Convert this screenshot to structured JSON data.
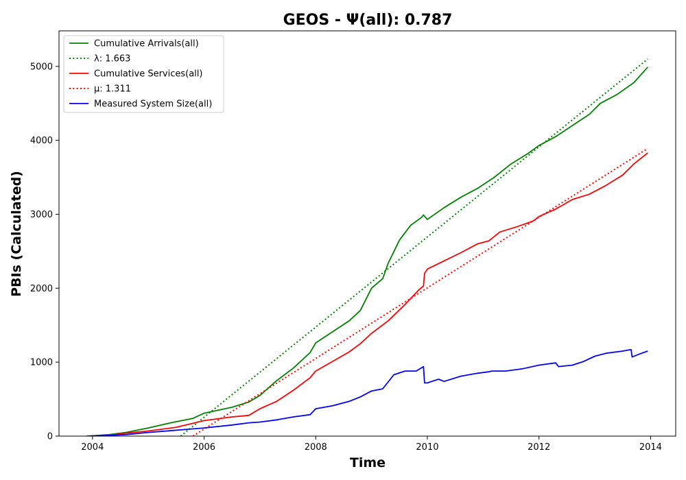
{
  "chart_data": {
    "type": "line",
    "title": "GEOS -  Ψ(all): 0.787",
    "xlabel": "Time",
    "ylabel": "PBIs (Calculated)",
    "xlim": [
      2003.4,
      2014.45
    ],
    "ylim": [
      0,
      5480
    ],
    "x_ticks": [
      2004,
      2006,
      2008,
      2010,
      2012,
      2014
    ],
    "x_tick_labels": [
      "2004",
      "2006",
      "2008",
      "2010",
      "2012",
      "2014"
    ],
    "y_ticks": [
      0,
      1000,
      2000,
      3000,
      4000,
      5000
    ],
    "y_tick_labels": [
      "0",
      "1000",
      "2000",
      "3000",
      "4000",
      "5000"
    ],
    "grid": false,
    "legend_position": "top-left",
    "series": [
      {
        "name": "Cumulative Arrivals(all)",
        "color": "#008000",
        "style": "solid",
        "x": [
          2003.9,
          2004.3,
          2004.6,
          2005.0,
          2005.4,
          2005.8,
          2006.0,
          2006.5,
          2006.8,
          2007.0,
          2007.3,
          2007.6,
          2007.9,
          2008.0,
          2008.3,
          2008.6,
          2008.8,
          2009.0,
          2009.2,
          2009.3,
          2009.5,
          2009.7,
          2009.9,
          2009.93,
          2010.0,
          2010.3,
          2010.6,
          2010.9,
          2011.2,
          2011.5,
          2011.8,
          2012.0,
          2012.3,
          2012.6,
          2012.9,
          2013.1,
          2013.4,
          2013.7,
          2013.95
        ],
        "y": [
          0,
          20,
          50,
          110,
          180,
          240,
          310,
          390,
          460,
          550,
          750,
          920,
          1130,
          1260,
          1410,
          1560,
          1700,
          2000,
          2130,
          2340,
          2650,
          2850,
          2960,
          2990,
          2930,
          3090,
          3230,
          3350,
          3500,
          3680,
          3820,
          3930,
          4050,
          4200,
          4350,
          4500,
          4620,
          4780,
          4990
        ]
      },
      {
        "name": "λ: 1.663",
        "color": "#008000",
        "style": "dotted",
        "x": [
          2005.58,
          2013.95
        ],
        "y": [
          0,
          5100
        ]
      },
      {
        "name": "Cumulative Services(all)",
        "color": "#ff0000",
        "style": "solid",
        "x": [
          2003.9,
          2004.3,
          2004.6,
          2005.0,
          2005.5,
          2006.0,
          2006.5,
          2006.8,
          2007.0,
          2007.3,
          2007.6,
          2007.9,
          2008.0,
          2008.3,
          2008.6,
          2008.8,
          2009.0,
          2009.3,
          2009.6,
          2009.85,
          2009.93,
          2009.95,
          2010.0,
          2010.3,
          2010.6,
          2010.9,
          2011.1,
          2011.3,
          2011.6,
          2011.9,
          2012.0,
          2012.3,
          2012.6,
          2012.9,
          2013.2,
          2013.5,
          2013.7,
          2013.95
        ],
        "y": [
          0,
          10,
          40,
          70,
          120,
          210,
          260,
          280,
          370,
          470,
          620,
          790,
          880,
          1010,
          1140,
          1250,
          1390,
          1560,
          1780,
          1980,
          2030,
          2200,
          2260,
          2370,
          2480,
          2600,
          2640,
          2760,
          2830,
          2910,
          2970,
          3070,
          3200,
          3270,
          3390,
          3530,
          3680,
          3830
        ]
      },
      {
        "name": "μ: 1.311",
        "color": "#ff0000",
        "style": "dotted",
        "x": [
          2005.8,
          2013.95
        ],
        "y": [
          0,
          3890
        ]
      },
      {
        "name": "Measured System Size(all)",
        "color": "#0000ff",
        "style": "solid",
        "x": [
          2003.9,
          2004.3,
          2004.6,
          2005.0,
          2005.5,
          2006.0,
          2006.5,
          2006.8,
          2007.0,
          2007.3,
          2007.6,
          2007.9,
          2008.0,
          2008.3,
          2008.6,
          2008.8,
          2009.0,
          2009.2,
          2009.4,
          2009.6,
          2009.8,
          2009.93,
          2009.95,
          2010.0,
          2010.2,
          2010.3,
          2010.6,
          2010.9,
          2011.1,
          2011.15,
          2011.4,
          2011.7,
          2012.0,
          2012.3,
          2012.35,
          2012.6,
          2012.8,
          2013.0,
          2013.2,
          2013.5,
          2013.65,
          2013.67,
          2013.8,
          2013.95
        ],
        "y": [
          0,
          10,
          20,
          50,
          80,
          110,
          150,
          180,
          190,
          220,
          260,
          290,
          370,
          410,
          470,
          530,
          610,
          640,
          830,
          880,
          880,
          940,
          720,
          720,
          770,
          740,
          810,
          850,
          870,
          880,
          880,
          910,
          960,
          990,
          940,
          960,
          1010,
          1080,
          1120,
          1150,
          1170,
          1070,
          1110,
          1150
        ]
      }
    ]
  }
}
